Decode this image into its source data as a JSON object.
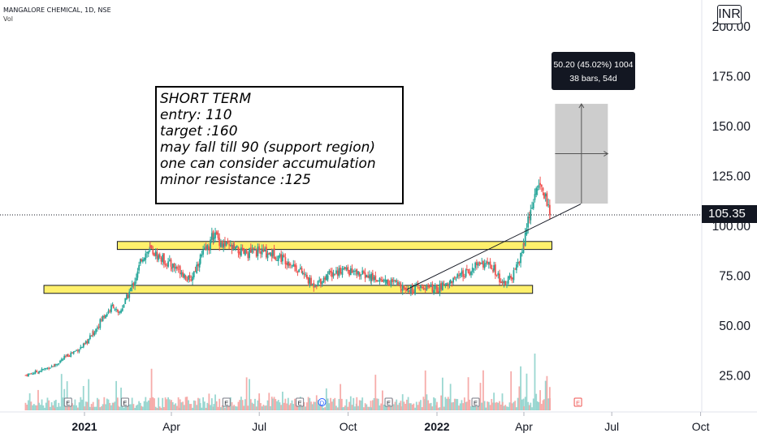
{
  "header": {
    "symbol_line": "MANGALORE CHEMICAL, 1D, NSE",
    "volume_label": "Vol",
    "currency": "INR"
  },
  "note": {
    "lines": [
      "SHORT TERM",
      "entry: 110",
      "target :160",
      "may fall till 90 (support region)",
      "one can consider accumulation",
      "minor resistance  :125"
    ]
  },
  "measure": {
    "line1": "50.20 (45.02%) 1004",
    "line2": "38 bars, 54d",
    "from": 111,
    "to": 161
  },
  "last_price": "105.35",
  "colors": {
    "up": "#26a69a",
    "down": "#ef5350",
    "zone": "#ffeb3b",
    "price_line": "#131722",
    "measure_box": "#c8c8c8"
  },
  "chart_data": {
    "type": "candlestick",
    "title": "MANGALORE CHEMICAL, 1D, NSE",
    "x_ticks": [
      "2021",
      "Apr",
      "Jul",
      "Oct",
      "2022",
      "Apr",
      "Jul",
      "Oct"
    ],
    "y_ticks": [
      "25.00",
      "50.00",
      "75.00",
      "100.00",
      "125.00",
      "150.00",
      "175.00",
      "200.00"
    ],
    "ylim": [
      12,
      212
    ],
    "last_price": 105.35,
    "support_zone": [
      66,
      70
    ],
    "resistance_zone": [
      88,
      92
    ],
    "trendline": {
      "start": [
        "2021-12-01",
        68
      ],
      "end": [
        "2022-04-28",
        112
      ]
    },
    "series": [
      {
        "values": [
          [
            "2020-11-01",
            25
          ],
          [
            "2020-11-15",
            27
          ],
          [
            "2020-12-01",
            30
          ],
          [
            "2020-12-15",
            35
          ],
          [
            "2021-01-01",
            40
          ],
          [
            "2021-01-10",
            46
          ],
          [
            "2021-01-20",
            54
          ],
          [
            "2021-01-31",
            60
          ],
          [
            "2021-02-05",
            55
          ],
          [
            "2021-02-15",
            65
          ],
          [
            "2021-02-25",
            76
          ],
          [
            "2021-03-01",
            84
          ],
          [
            "2021-03-10",
            88
          ],
          [
            "2021-03-20",
            84
          ],
          [
            "2021-04-01",
            80
          ],
          [
            "2021-04-10",
            78
          ],
          [
            "2021-04-20",
            72
          ],
          [
            "2021-05-01",
            84
          ],
          [
            "2021-05-10",
            90
          ],
          [
            "2021-05-15",
            96
          ],
          [
            "2021-05-25",
            90
          ],
          [
            "2021-06-05",
            88
          ],
          [
            "2021-06-15",
            86
          ],
          [
            "2021-07-01",
            87
          ],
          [
            "2021-07-15",
            86
          ],
          [
            "2021-08-01",
            82
          ],
          [
            "2021-08-15",
            76
          ],
          [
            "2021-08-25",
            70
          ],
          [
            "2021-09-10",
            75
          ],
          [
            "2021-09-25",
            78
          ],
          [
            "2021-10-10",
            76
          ],
          [
            "2021-10-25",
            74
          ],
          [
            "2021-11-10",
            72
          ],
          [
            "2021-11-25",
            70
          ],
          [
            "2021-12-05",
            68
          ],
          [
            "2021-12-20",
            69
          ],
          [
            "2022-01-01",
            68
          ],
          [
            "2022-01-15",
            72
          ],
          [
            "2022-02-01",
            76
          ],
          [
            "2022-02-15",
            82
          ],
          [
            "2022-03-01",
            78
          ],
          [
            "2022-03-10",
            70
          ],
          [
            "2022-03-20",
            74
          ],
          [
            "2022-04-01",
            90
          ],
          [
            "2022-04-08",
            110
          ],
          [
            "2022-04-15",
            121
          ],
          [
            "2022-04-22",
            116
          ],
          [
            "2022-04-28",
            105.35
          ]
        ]
      }
    ]
  }
}
